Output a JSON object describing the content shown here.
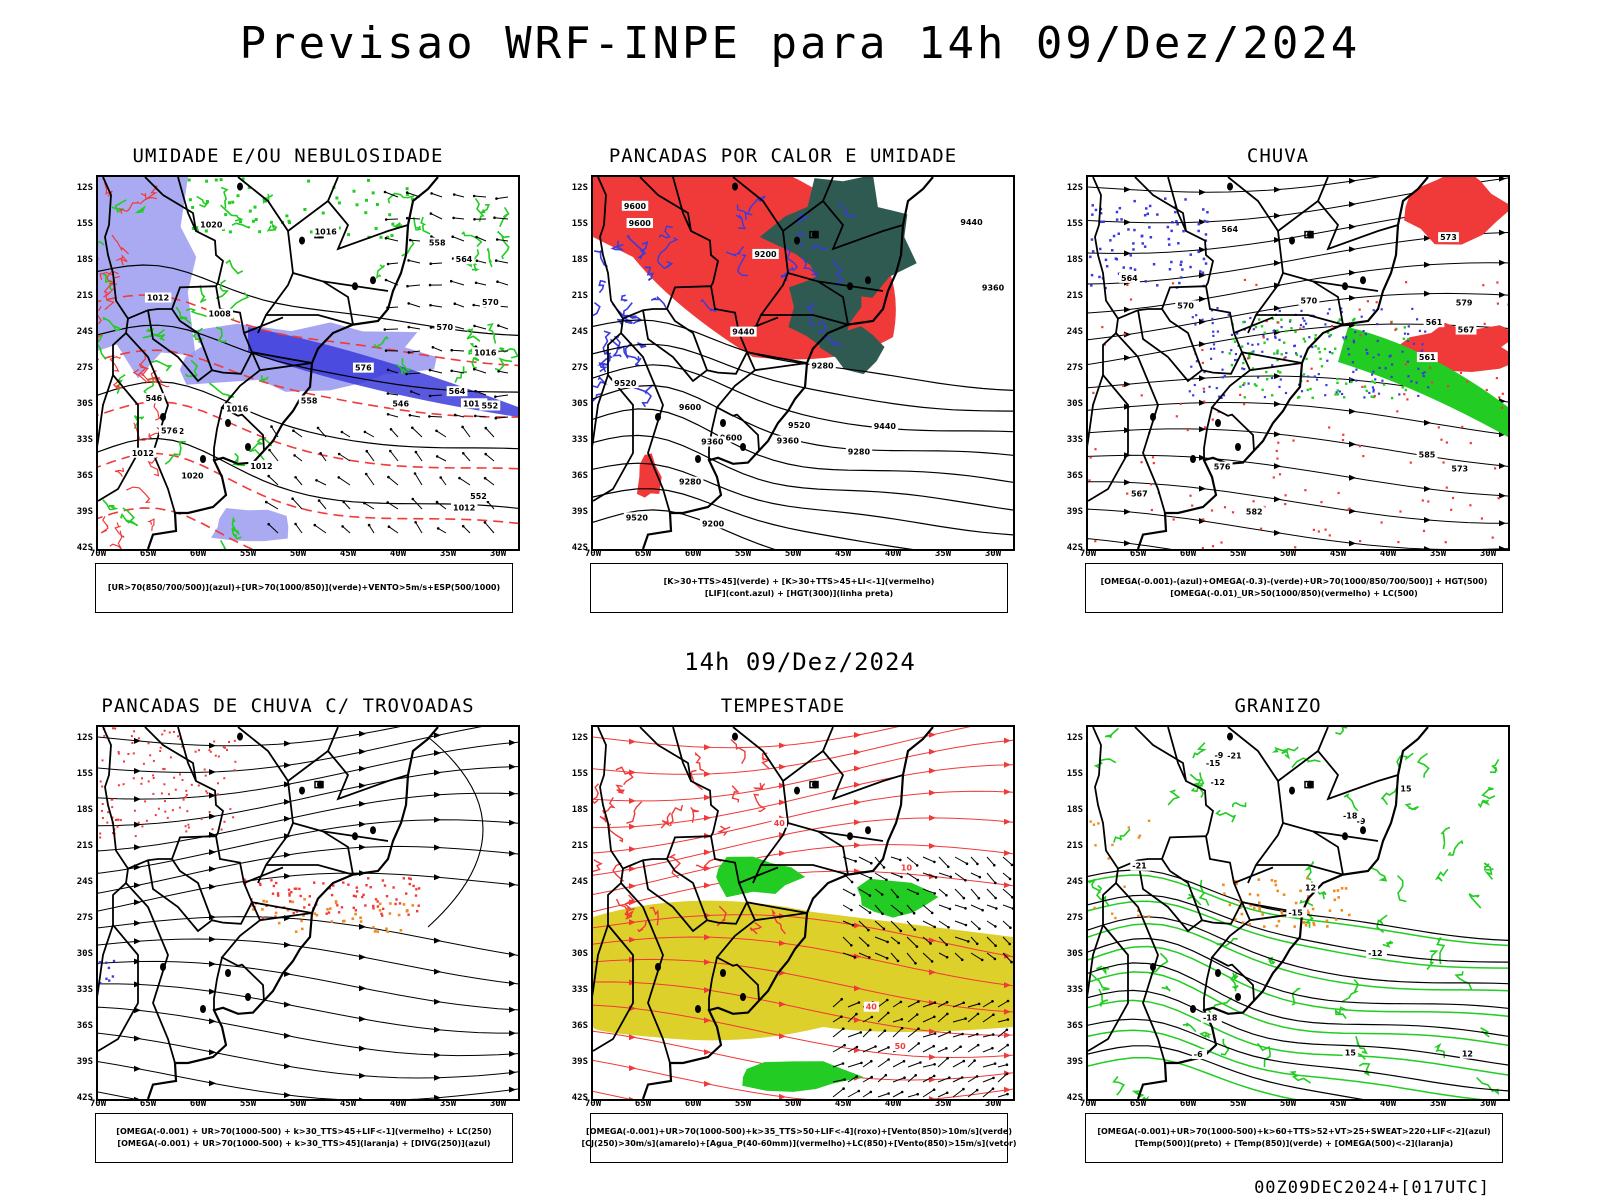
{
  "title": "Previsao WRF-INPE  para 14h 09/Dez/2024",
  "mid_timestamp": "14h 09/Dez/2024",
  "footer_timestamp": "00Z09DEC2024+[017UTC]",
  "axes": {
    "lat_labels": [
      "12S",
      "15S",
      "18S",
      "21S",
      "24S",
      "27S",
      "30S",
      "33S",
      "36S",
      "39S",
      "42S"
    ],
    "lon_labels": [
      "70W",
      "65W",
      "60W",
      "55W",
      "50W",
      "45W",
      "40W",
      "35W",
      "30W"
    ]
  },
  "colors": {
    "blue_humidity": "#9b9bf0",
    "dark_blue": "#3b3bdc",
    "green": "#22cc22",
    "red": "#f03a3a",
    "dark_teal": "#2f5a52",
    "yellow": "#ddd02a",
    "orange": "#f08a22"
  },
  "panels": [
    {
      "title": "UMIDADE E/OU NEBULOSIDADE",
      "legend": [
        "[UR>70(850/700/500)](azul)+[UR>70(1000/850)](verde)+VENTO>5m/s+ESP(500/1000)"
      ],
      "contour_labels": [
        "1008",
        "1012",
        "1012",
        "1012",
        "1016",
        "1016",
        "1012",
        "1016",
        "1020",
        "1020",
        "1016",
        "1012",
        "576",
        "570",
        "564",
        "558",
        "552",
        "546",
        "576",
        "570",
        "564",
        "558",
        "552",
        "546"
      ]
    },
    {
      "title": "PANCADAS POR CALOR E UMIDADE",
      "legend": [
        "[K>30+TTS>45](verde) + [K>30+TTS>45+LI<-1](vermelho)",
        "[LIF](cont.azul) + [HGT(300)](linha preta)"
      ],
      "contour_labels": [
        "9600",
        "9600",
        "9520",
        "9440",
        "9360",
        "9280",
        "9200",
        "9600",
        "9520",
        "9440",
        "9360",
        "9280",
        "9200",
        "9600",
        "9520",
        "9440",
        "9360",
        "9280"
      ]
    },
    {
      "title": "CHUVA",
      "legend": [
        "[OMEGA(-0.001)-(azul)+OMEGA(-0.3)-(verde)+UR>70(1000/850/700/500)] + HGT(500)",
        "[OMEGA(-0.01)_UR>50(1000/850)(vermelho) + LC(500)"
      ],
      "contour_labels": [
        "585",
        "579",
        "573",
        "570",
        "567",
        "564",
        "561",
        "576",
        "573",
        "570",
        "567",
        "564",
        "561",
        "582"
      ]
    },
    {
      "title": "PANCADAS DE CHUVA C/ TROVOADAS",
      "legend": [
        "[OMEGA(-0.001) + UR>70(1000-500) + k>30_TTS>45+LIF<-1](vermelho) + LC(250)",
        "[OMEGA(-0.001) + UR>70(1000-500) + k>30_TTS>45](laranja) + [DIVG(250)](azul)"
      ],
      "contour_labels": []
    },
    {
      "title": "TEMPESTADE",
      "legend": [
        "[OMEGA(-0.001)+UR>70(1000-500)+k>35_TTS>50+LIF<-4](roxo)+[Vento(850)>10m/s](verde)",
        "[CJ(250)>30m/s](amarelo)+[Agua_P(40-60mm)](vermelho)+LC(850)+[Vento(850)>15m/s](vetor)"
      ],
      "contour_labels": [
        "40",
        "50",
        "10",
        "40"
      ]
    },
    {
      "title": "GRANIZO",
      "legend": [
        "[OMEGA(-0.001)+UR>70(1000-500)+k>60+TTS>52+VT>25+SWEAT>220+LIF<-2](azul)",
        "[Temp(500)](preto) + [Temp(850)](verde) + [OMEGA(500)<-2](laranja)"
      ],
      "contour_labels": [
        "-6",
        "-9",
        "-12",
        "-15",
        "-18",
        "-21",
        "-9",
        "-12",
        "-15",
        "-18",
        "-21",
        "12",
        "15",
        "12",
        "15"
      ]
    }
  ]
}
